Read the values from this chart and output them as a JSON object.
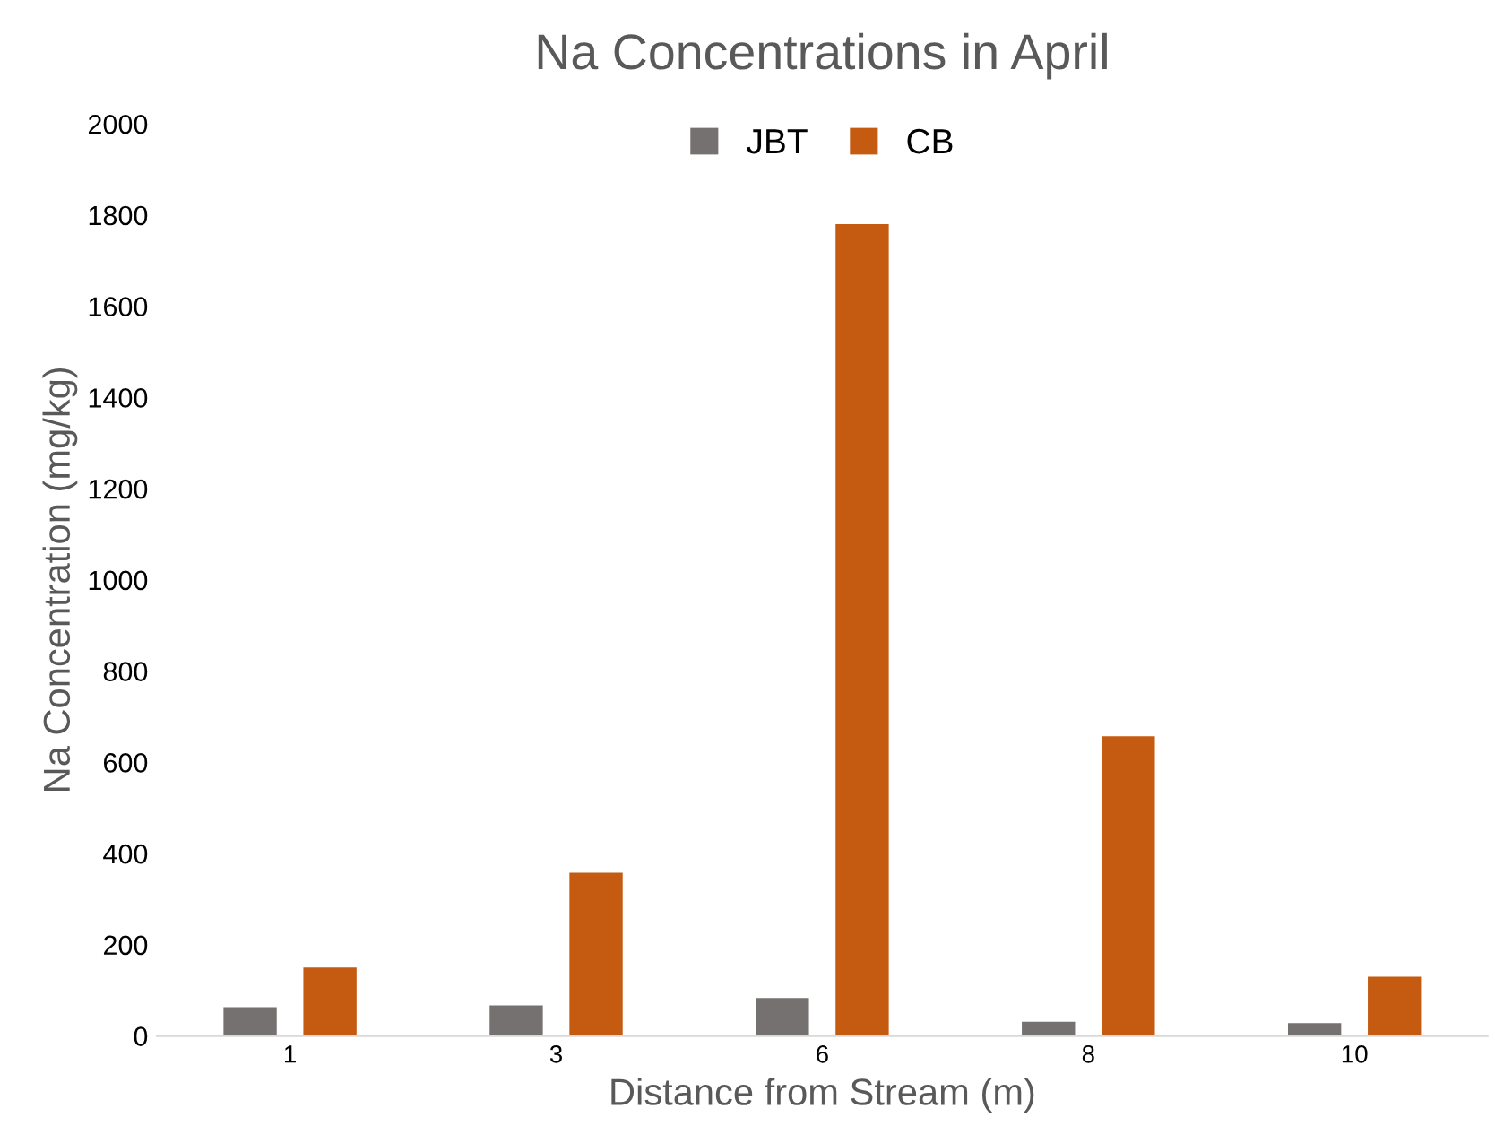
{
  "chart_data": {
    "type": "bar",
    "title": "Na Concentrations in April",
    "xlabel": "Distance from Stream (m)",
    "ylabel": "Na Concentration (mg/kg)",
    "categories": [
      "1",
      "3",
      "6",
      "8",
      "10"
    ],
    "series": [
      {
        "name": "JBT",
        "color": "#767171",
        "values": [
          63,
          67,
          83,
          31,
          28
        ]
      },
      {
        "name": "CB",
        "color": "#c55a11",
        "values": [
          150,
          358,
          1780,
          657,
          130
        ]
      }
    ],
    "ylim": [
      0,
      2000
    ],
    "yticks": [
      0,
      200,
      400,
      600,
      800,
      1000,
      1200,
      1400,
      1600,
      1800,
      2000
    ],
    "grid": false,
    "legend": "top"
  }
}
